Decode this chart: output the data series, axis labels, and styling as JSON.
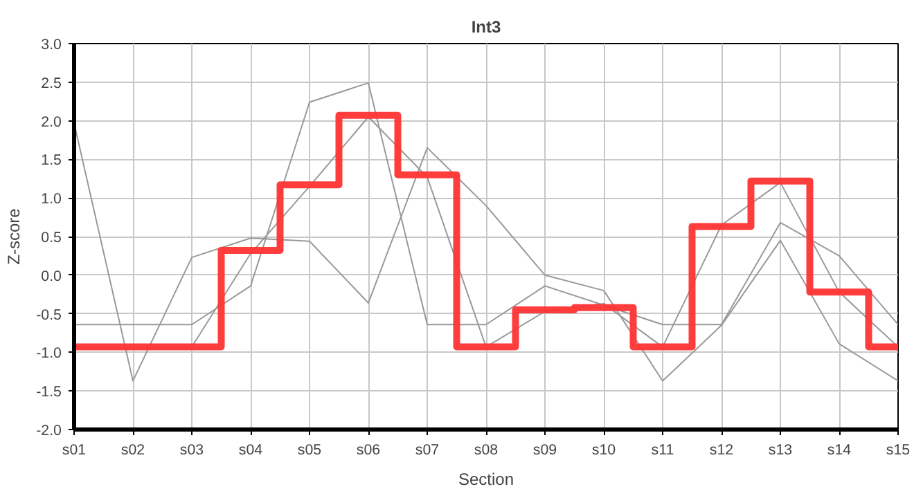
{
  "chart_data": {
    "type": "line",
    "title": "Int3",
    "xlabel": "Section",
    "ylabel": "Z-score",
    "categories": [
      "s01",
      "s02",
      "s03",
      "s04",
      "s05",
      "s06",
      "s07",
      "s08",
      "s09",
      "s10",
      "s11",
      "s12",
      "s13",
      "s14",
      "s15"
    ],
    "series": [
      {
        "color": "#999999",
        "values": [
          1.97,
          -1.37,
          0.23,
          0.48,
          0.44,
          -0.36,
          1.65,
          0.9,
          0.0,
          -0.2,
          -1.37,
          -0.65,
          0.45,
          -0.89,
          -1.37
        ]
      },
      {
        "color": "#999999",
        "values": [
          -0.64,
          -0.64,
          -0.64,
          -0.14,
          2.24,
          2.49,
          -0.64,
          -0.64,
          -0.14,
          -0.39,
          -0.64,
          -0.64,
          0.68,
          0.25,
          -0.64
        ]
      },
      {
        "color": "#999999",
        "values": [
          -0.93,
          -0.93,
          -0.93,
          0.28,
          1.15,
          2.05,
          1.27,
          -0.93,
          -0.47,
          -0.37,
          -0.93,
          0.65,
          1.2,
          -0.22,
          -0.93
        ]
      },
      {
        "type": "step",
        "color": "#ff3333",
        "values": [
          -0.93,
          -0.93,
          -0.93,
          0.32,
          1.17,
          2.07,
          1.3,
          -0.93,
          -0.45,
          -0.42,
          -0.93,
          0.63,
          1.22,
          -0.22,
          -0.93
        ]
      }
    ],
    "ylim": [
      -2.0,
      3.0
    ],
    "yticks": [
      {
        "value": -2,
        "label": "-2.0"
      },
      {
        "value": -1.5,
        "label": "-1.5"
      },
      {
        "value": -1,
        "label": "-1.0"
      },
      {
        "value": -0.5,
        "label": "-0.5"
      },
      {
        "value": 0,
        "label": "0.0"
      },
      {
        "value": 0.5,
        "label": "0.5"
      },
      {
        "value": 1,
        "label": "1.0"
      },
      {
        "value": 1.5,
        "label": "1.5"
      },
      {
        "value": 2,
        "label": "2.0"
      },
      {
        "value": 2.5,
        "label": "2.5"
      },
      {
        "value": 3,
        "label": "3.0"
      }
    ],
    "grid": true
  }
}
